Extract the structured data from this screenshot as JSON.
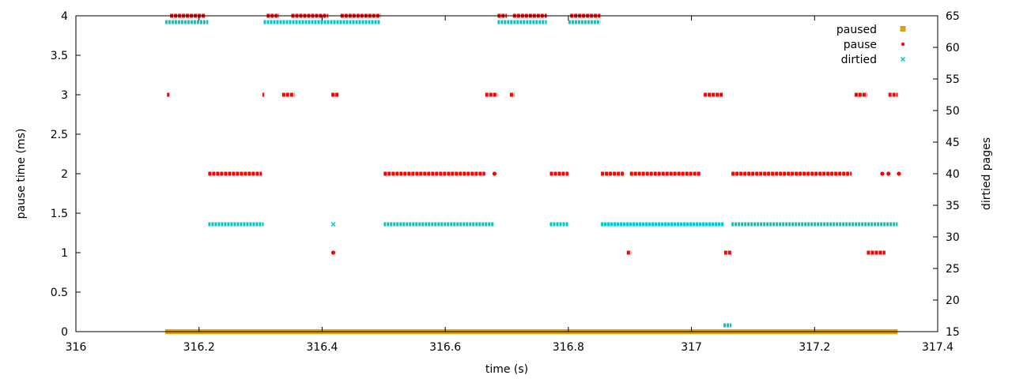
{
  "chart_data": {
    "type": "scatter",
    "title": "",
    "xlabel": "time (s)",
    "ylabel": "pause time (ms)",
    "y2label": "dirtied pages",
    "xlim": [
      316,
      317.4
    ],
    "ylim": [
      0,
      4
    ],
    "y2lim": [
      15,
      65
    ],
    "xticks": [
      "316",
      "316.2",
      "316.4",
      "316.6",
      "316.8",
      "317",
      "317.2",
      "317.4"
    ],
    "yticks": [
      "0",
      "0.5",
      "1",
      "1.5",
      "2",
      "2.5",
      "3",
      "3.5",
      "4"
    ],
    "y2ticks": [
      "15",
      "20",
      "25",
      "30",
      "35",
      "40",
      "45",
      "50",
      "55",
      "60",
      "65"
    ],
    "xtick_values": [
      316,
      316.2,
      316.4,
      316.6,
      316.8,
      317,
      317.2,
      317.4
    ],
    "ytick_values": [
      0,
      0.5,
      1,
      1.5,
      2,
      2.5,
      3,
      3.5,
      4
    ],
    "y2tick_values": [
      15,
      20,
      25,
      30,
      35,
      40,
      45,
      50,
      55,
      60,
      65
    ],
    "grid": false,
    "legend_position": "top-right",
    "legend": [
      {
        "name": "paused",
        "color": "#e69f00",
        "marker": "square"
      },
      {
        "name": "pause",
        "color": "#ff0000",
        "marker": "dot"
      },
      {
        "name": "dirtied",
        "color": "#00c8c8",
        "marker": "x"
      }
    ],
    "series": [
      {
        "name": "paused",
        "axis": "y",
        "color": "#e69f00",
        "segments": [
          {
            "x0": 316.145,
            "x1": 317.335,
            "y": 0
          }
        ]
      },
      {
        "name": "pause",
        "axis": "y",
        "color": "#ff0000",
        "segments": [
          {
            "x0": 316.148,
            "x1": 316.152,
            "y": 3
          },
          {
            "x0": 316.153,
            "x1": 316.21,
            "y": 4
          },
          {
            "x0": 316.215,
            "x1": 316.302,
            "y": 2
          },
          {
            "x0": 316.303,
            "x1": 316.306,
            "y": 3
          },
          {
            "x0": 316.31,
            "x1": 316.33,
            "y": 4
          },
          {
            "x0": 316.335,
            "x1": 316.355,
            "y": 3
          },
          {
            "x0": 316.35,
            "x1": 316.41,
            "y": 4
          },
          {
            "x0": 316.415,
            "x1": 316.428,
            "y": 3
          },
          {
            "x0": 316.43,
            "x1": 316.495,
            "y": 4
          },
          {
            "x0": 316.5,
            "x1": 316.665,
            "y": 2
          },
          {
            "x0": 316.665,
            "x1": 316.685,
            "y": 3
          },
          {
            "x0": 316.685,
            "x1": 316.7,
            "y": 4
          },
          {
            "x0": 316.705,
            "x1": 316.712,
            "y": 3
          },
          {
            "x0": 316.71,
            "x1": 316.765,
            "y": 4
          },
          {
            "x0": 316.77,
            "x1": 316.8,
            "y": 2
          },
          {
            "x0": 316.803,
            "x1": 316.852,
            "y": 4
          },
          {
            "x0": 316.853,
            "x1": 316.89,
            "y": 2
          },
          {
            "x0": 316.895,
            "x1": 316.902,
            "y": 1
          },
          {
            "x0": 316.9,
            "x1": 317.015,
            "y": 2
          },
          {
            "x0": 317.02,
            "x1": 317.052,
            "y": 3
          },
          {
            "x0": 317.053,
            "x1": 317.065,
            "y": 1
          },
          {
            "x0": 317.065,
            "x1": 317.26,
            "y": 2
          },
          {
            "x0": 317.265,
            "x1": 317.285,
            "y": 3
          },
          {
            "x0": 317.285,
            "x1": 317.315,
            "y": 1
          },
          {
            "x0": 317.32,
            "x1": 317.335,
            "y": 3
          }
        ],
        "points": [
          {
            "x": 316.418,
            "y": 1
          },
          {
            "x": 316.68,
            "y": 2
          },
          {
            "x": 317.31,
            "y": 2
          },
          {
            "x": 317.32,
            "y": 2
          },
          {
            "x": 317.337,
            "y": 2
          }
        ]
      },
      {
        "name": "dirtied",
        "axis": "y2",
        "color": "#00c8c8",
        "segments": [
          {
            "x0": 316.145,
            "x1": 316.215,
            "y": 64
          },
          {
            "x0": 316.215,
            "x1": 316.305,
            "y": 32
          },
          {
            "x0": 316.305,
            "x1": 316.495,
            "y": 64
          },
          {
            "x0": 316.5,
            "x1": 316.68,
            "y": 32
          },
          {
            "x0": 316.685,
            "x1": 316.765,
            "y": 64
          },
          {
            "x0": 316.77,
            "x1": 316.8,
            "y": 32
          },
          {
            "x0": 316.8,
            "x1": 316.852,
            "y": 64
          },
          {
            "x0": 316.853,
            "x1": 317.052,
            "y": 32
          },
          {
            "x0": 317.052,
            "x1": 317.065,
            "y": 16
          },
          {
            "x0": 317.065,
            "x1": 317.335,
            "y": 32
          }
        ],
        "points": [
          {
            "x": 316.418,
            "y": 32
          }
        ]
      }
    ]
  }
}
